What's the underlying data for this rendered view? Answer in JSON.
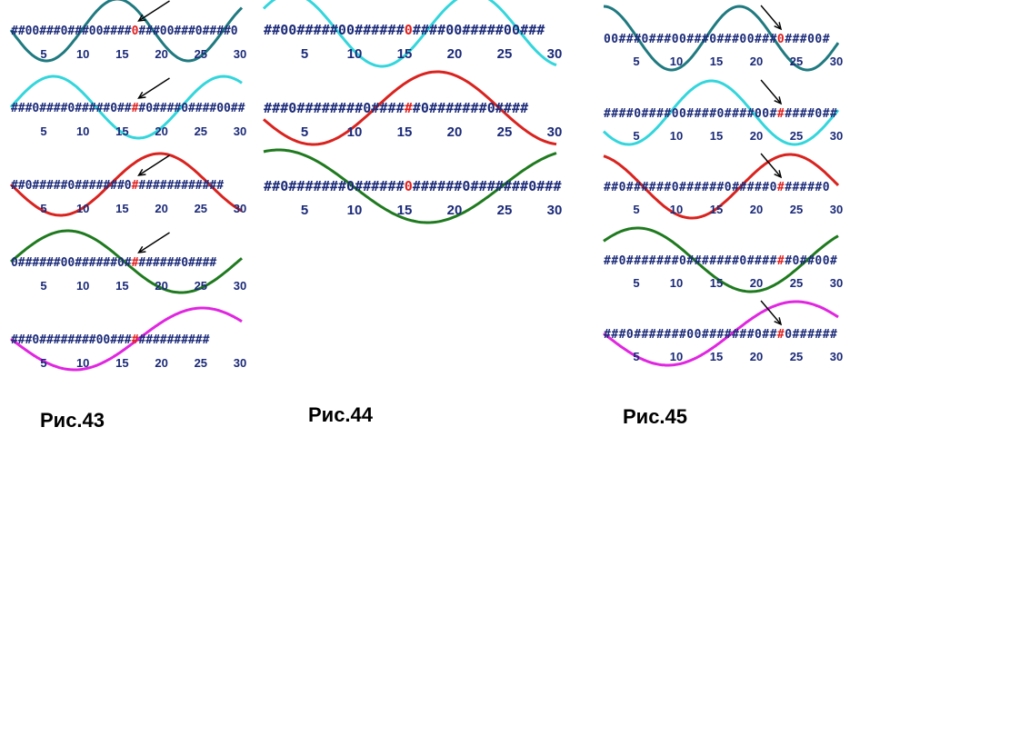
{
  "figures": [
    {
      "caption": "Рис.43",
      "ticks": [
        "5",
        "10",
        "15",
        "20",
        "25",
        "30"
      ],
      "rows": [
        {
          "sequence": "##00###0###00####0###00###0####0",
          "highlight": 17,
          "wave_color": "#1f7a80",
          "period": 20,
          "phase": 0.5,
          "arrow": true
        },
        {
          "sequence": "###0####0#####0####0####0####00##",
          "highlight": 17,
          "wave_color": "#33d6dc",
          "period": 24,
          "phase": 0.0,
          "arrow": true
        },
        {
          "sequence": "##0#####0#######0#############",
          "highlight": 17,
          "wave_color": "#d9231f",
          "period": 28,
          "phase": 0.5,
          "arrow": true
        },
        {
          "sequence": "0######00######0########0####",
          "highlight": 17,
          "wave_color": "#1f7a1f",
          "period": 32,
          "phase": 0.0,
          "arrow": true
        },
        {
          "sequence": "###0########00##############",
          "highlight": 17,
          "wave_color": "#e026e0",
          "period": 36,
          "phase": 0.5,
          "arrow": false
        }
      ]
    },
    {
      "caption": "Рис.44",
      "ticks": [
        "5",
        "10",
        "15",
        "20",
        "25",
        "30"
      ],
      "rows": [
        {
          "sequence": "##00#####00######0####00#####00###",
          "highlight": 17,
          "wave_color": "#33d6dc",
          "period": 22,
          "phase": 0.1,
          "arrow": false
        },
        {
          "sequence": "###0########0######0#######0####",
          "highlight": 17,
          "wave_color": "#d9231f",
          "period": 30,
          "phase": 0.55,
          "arrow": false
        },
        {
          "sequence": "##0#######0######0######0#######0###",
          "highlight": 17,
          "wave_color": "#1f7a1f",
          "period": 36,
          "phase": 0.2,
          "arrow": false
        }
      ]
    },
    {
      "caption": "Рис.45",
      "ticks": [
        "5",
        "10",
        "15",
        "20",
        "25",
        "30"
      ],
      "rows": [
        {
          "sequence": "00###0###00###0###00###0###00#",
          "highlight": 23,
          "wave_color": "#1f7a80",
          "period": 18,
          "phase": 0.25,
          "arrow": true
        },
        {
          "sequence": "####0####00####0####00######0##",
          "highlight": 23,
          "wave_color": "#33d6dc",
          "period": 22,
          "phase": 0.6,
          "arrow": true
        },
        {
          "sequence": "##0######0######0#####0######0",
          "highlight": 23,
          "wave_color": "#d9231f",
          "period": 26,
          "phase": 0.3,
          "arrow": true
        },
        {
          "sequence": "##0#######0#######0######0##00#",
          "highlight": 23,
          "wave_color": "#1f7a1f",
          "period": 30,
          "phase": 0.1,
          "arrow": false
        },
        {
          "sequence": "###0#######00#######0###0######",
          "highlight": 23,
          "wave_color": "#e026e0",
          "period": 34,
          "phase": 0.5,
          "arrow": true
        }
      ]
    }
  ]
}
